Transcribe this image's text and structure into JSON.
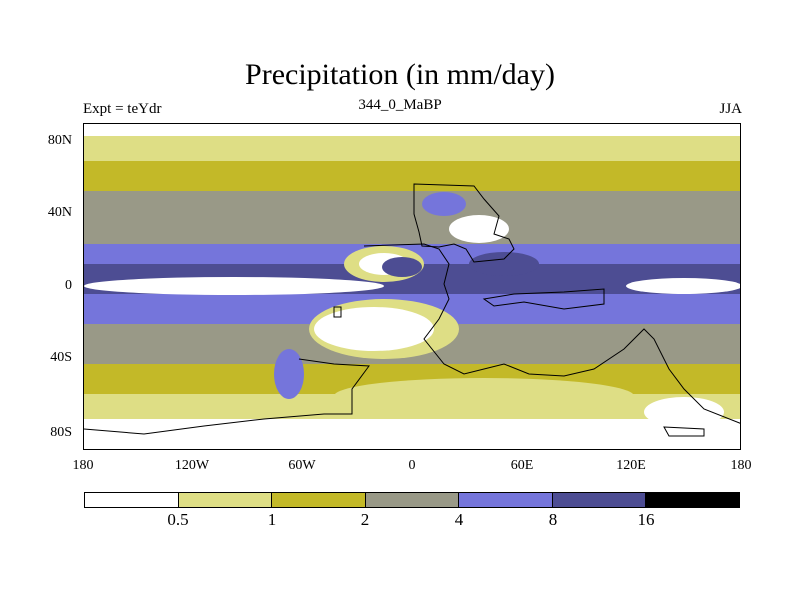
{
  "title": "Precipitation (in mm/day)",
  "subtitle_left": "Expt = teYdr",
  "subtitle_center": "344_0_MaBP",
  "subtitle_right": "JJA",
  "lat_ticks": [
    "80N",
    "40N",
    "0",
    "40S",
    "80S"
  ],
  "lon_ticks": [
    "180",
    "120W",
    "60W",
    "0",
    "60E",
    "120E",
    "180"
  ],
  "colorbar": {
    "labels": [
      "0.5",
      "1",
      "2",
      "4",
      "8",
      "16"
    ],
    "colors": [
      "#ffffff",
      "#dede85",
      "#c3b928",
      "#999987",
      "#7575db",
      "#4d4d93",
      "#000000"
    ]
  }
}
